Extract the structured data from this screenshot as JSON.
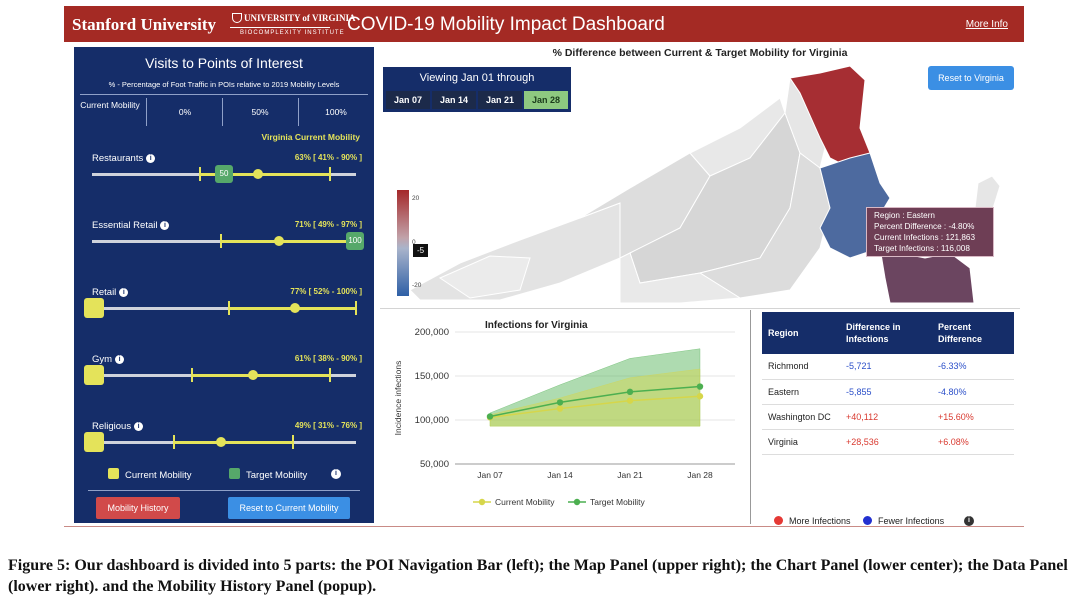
{
  "header": {
    "brand": "Stanford University",
    "uva_name": "UNIVERSITY of VIRGINIA",
    "uva_sub": "BIOCOMPLEXITY INSTITUTE",
    "title": "COVID-19 Mobility Impact Dashboard",
    "more_info": "More Info"
  },
  "poi_panel": {
    "title": "Visits to Points of Interest",
    "subtitle": "% - Percentage of Foot Traffic in POIs relative to 2019 Mobility Levels",
    "legend": {
      "current_mobility": "Current Mobility",
      "p0": "0%",
      "p50": "50%",
      "p100": "100%"
    },
    "va_current": "Virginia Current Mobility",
    "categories": [
      {
        "label": "Restaurants",
        "range_text": "63% [ 41% - 90% ]",
        "low": 41,
        "high": 90,
        "current": 63,
        "target": "50",
        "target_value": 50
      },
      {
        "label": "Essential Retail",
        "range_text": "71% [ 49% - 97% ]",
        "low": 49,
        "high": 97,
        "current": 71,
        "target": "100",
        "target_value": 100
      },
      {
        "label": "Retail",
        "range_text": "77% [ 52% - 100% ]",
        "low": 52,
        "high": 100,
        "current": 77,
        "target": null,
        "target_value": 0
      },
      {
        "label": "Gym",
        "range_text": "61% [ 38% - 90% ]",
        "low": 38,
        "high": 90,
        "current": 61,
        "target": null,
        "target_value": 0
      },
      {
        "label": "Religious",
        "range_text": "49% [ 31% - 76% ]",
        "low": 31,
        "high": 76,
        "current": 49,
        "target": null,
        "target_value": 0
      }
    ],
    "legend_current": "Current Mobility",
    "legend_target": "Target Mobility",
    "btn_history": "Mobility History",
    "btn_reset": "Reset to Current Mobility"
  },
  "map_panel": {
    "title": "% Difference between Current & Target Mobility for Virginia",
    "viewing": "Viewing Jan 01 through",
    "dates": [
      "Jan 07",
      "Jan 14",
      "Jan 21",
      "Jan 28"
    ],
    "active_date": "Jan 28",
    "reset_btn": "Reset to Virginia",
    "colorbar": {
      "max": "20",
      "mid": "0",
      "min": "-20",
      "marker": "-5"
    },
    "tooltip": {
      "region": "Region : Eastern",
      "percent": "Percent Difference : -4.80%",
      "current": "Current Infections : 121,863",
      "target": "Target Infections : 116,008"
    }
  },
  "chart_data": {
    "type": "line",
    "title": "Infections for Virginia",
    "ylabel": "Incidence infections",
    "xlabel": "",
    "categories": [
      "Jan 07",
      "Jan 14",
      "Jan 21",
      "Jan 28"
    ],
    "ylim": [
      50000,
      200000
    ],
    "yticks": [
      "50,000",
      "100,000",
      "150,000",
      "200,000"
    ],
    "series": [
      {
        "name": "Current Mobility",
        "color": "#d6d64a",
        "values": [
          103000,
          113000,
          122000,
          127000
        ],
        "band_low": [
          93000,
          93000,
          93000,
          93000
        ],
        "band_high": [
          106000,
          125000,
          148000,
          158000
        ]
      },
      {
        "name": "Target Mobility",
        "color": "#4caf50",
        "values": [
          104000,
          120000,
          132000,
          138000
        ],
        "band_low": [
          93000,
          93000,
          93000,
          93000
        ],
        "band_high": [
          108000,
          140000,
          170000,
          181000
        ]
      }
    ]
  },
  "data_panel": {
    "headers": [
      "Region",
      "Difference in Infections",
      "Percent Difference"
    ],
    "rows": [
      {
        "region": "Richmond",
        "diff": "-5,721",
        "pct": "-6.33%",
        "sign": "neg"
      },
      {
        "region": "Eastern",
        "diff": "-5,855",
        "pct": "-4.80%",
        "sign": "neg"
      },
      {
        "region": "Washington DC",
        "diff": "+40,112",
        "pct": "+15.60%",
        "sign": "pos"
      },
      {
        "region": "Virginia",
        "diff": "+28,536",
        "pct": "+6.08%",
        "sign": "pos"
      }
    ],
    "legend_more": "More Infections",
    "legend_fewer": "Fewer Infections"
  },
  "caption": "Figure 5: Our dashboard is divided into 5 parts: the POI Navigation Bar (left); the Map Panel (upper right); the Chart Panel (lower center); the Data Panel (lower right). and the Mobility History Panel (popup).",
  "colors": {
    "header": "#a42a24",
    "panel": "#152d69",
    "accent": "#e4e35a",
    "target": "#56a86a"
  }
}
